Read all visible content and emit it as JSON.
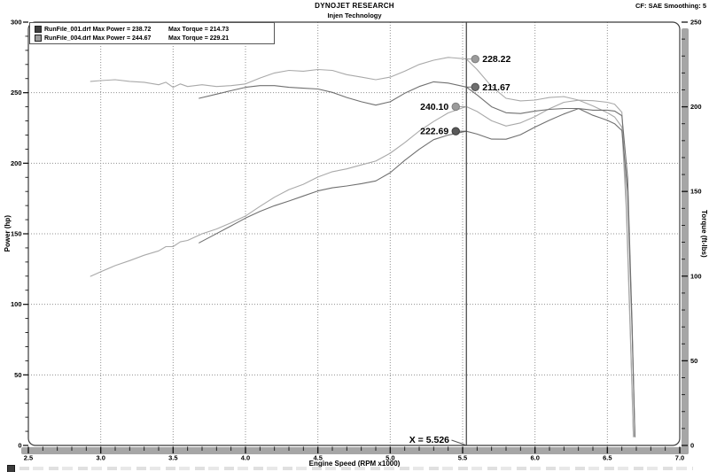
{
  "header": {
    "title": "DYNOJET RESEARCH",
    "subtitle": "Injen Technology",
    "correction": "CF: SAE  Smoothing: 5"
  },
  "legend": {
    "rows": [
      {
        "file": "RunFile_001.drf",
        "max_power": "Max Power = 238.72",
        "max_torque": "Max Torque = 214.73",
        "color": "#3f3f3f"
      },
      {
        "file": "RunFile_004.drf",
        "max_power": "Max Power = 244.67",
        "max_torque": "Max Torque = 229.21",
        "color": "#9b9b9b"
      }
    ]
  },
  "axes": {
    "x": {
      "label": "Engine Speed (RPM x1000)",
      "ticks": [
        2.5,
        3.0,
        3.5,
        4.0,
        4.5,
        5.0,
        5.5,
        6.0,
        6.5,
        7.0
      ],
      "tick_labels": [
        "2.5",
        "3.0",
        "3.5",
        "4.0",
        "4.5",
        "5.0",
        "5.5",
        "6.0",
        "6.5",
        "7.0"
      ],
      "gridlines": [
        3.0,
        3.5,
        4.0,
        4.5,
        5.0,
        5.5,
        6.0,
        6.5
      ],
      "minor_step": 0.1
    },
    "y_left": {
      "label": "Power (hp)",
      "ticks": [
        0,
        50,
        100,
        150,
        200,
        250,
        300
      ],
      "tick_labels": [
        "0",
        "50",
        "100",
        "150",
        "200",
        "250",
        "300"
      ],
      "gridlines": [
        50,
        100,
        150,
        200,
        250
      ],
      "minor_step": 10
    },
    "y_right": {
      "label": "Torque (ft-lbs)",
      "ticks": [
        0,
        50,
        100,
        150,
        200,
        250
      ],
      "tick_labels": [
        "0",
        "50",
        "100",
        "150",
        "200",
        "250"
      ],
      "minor_step": 10
    }
  },
  "cursor": {
    "x_label": "X = 5.526",
    "x_value": 5.526
  },
  "markers": [
    {
      "label": "228.22",
      "value": 228.22,
      "axis": "torque",
      "run": "RunFile_004.drf",
      "side": "right",
      "color": "#9b9b9b",
      "stroke": "#7e7e7e"
    },
    {
      "label": "211.67",
      "value": 211.67,
      "axis": "torque",
      "run": "RunFile_001.drf",
      "side": "right",
      "color": "#6f6f6f",
      "stroke": "#4d4d4d"
    },
    {
      "label": "240.10",
      "value": 240.1,
      "axis": "power",
      "run": "RunFile_004.drf",
      "side": "left",
      "color": "#9b9b9b",
      "stroke": "#7e7e7e"
    },
    {
      "label": "222.69",
      "value": 222.69,
      "axis": "power",
      "run": "RunFile_001.drf",
      "side": "left",
      "color": "#5a5a5a",
      "stroke": "#3a3a3a"
    }
  ],
  "chart_data": {
    "type": "line",
    "title": "DYNOJET RESEARCH - Injen Technology",
    "xlabel": "Engine Speed (RPM x1000)",
    "ylabel_left": "Power (hp)",
    "ylabel_right": "Torque (ft-lbs)",
    "xlim": [
      2.5,
      7.0
    ],
    "ylim_left": [
      0,
      300
    ],
    "ylim_right": [
      0,
      250
    ],
    "grid": "dotted",
    "legend_position": "top-left",
    "cursor_x": 5.526,
    "cursor_values": [
      {
        "run": "RunFile_001.drf",
        "power": 222.69,
        "torque": 211.67
      },
      {
        "run": "RunFile_004.drf",
        "power": 240.1,
        "torque": 228.22
      }
    ],
    "max_values": [
      {
        "run": "RunFile_001.drf",
        "max_power": 238.72,
        "max_torque": 214.73
      },
      {
        "run": "RunFile_004.drf",
        "max_power": 244.67,
        "max_torque": 229.21
      }
    ],
    "series": [
      {
        "name": "RunFile_004.drf Power",
        "axis": "left",
        "color": "#a9a9a9",
        "x": [
          2.93,
          3.0,
          3.1,
          3.2,
          3.3,
          3.4,
          3.45,
          3.5,
          3.55,
          3.6,
          3.7,
          3.8,
          3.9,
          4.0,
          4.1,
          4.2,
          4.3,
          4.4,
          4.5,
          4.6,
          4.7,
          4.8,
          4.9,
          5.0,
          5.1,
          5.2,
          5.3,
          5.4,
          5.526,
          5.6,
          5.7,
          5.8,
          5.9,
          6.0,
          6.1,
          6.2,
          6.3,
          6.4,
          6.5,
          6.55,
          6.6,
          6.63,
          6.66,
          6.68
        ],
        "y": [
          119.9,
          123.1,
          127.5,
          131.0,
          134.8,
          137.9,
          140.9,
          140.9,
          144.3,
          145.3,
          150.0,
          153.4,
          157.8,
          162.6,
          169.4,
          175.9,
          181.3,
          185.1,
          190.2,
          194.0,
          196.0,
          198.8,
          201.5,
          207.1,
          214.6,
          222.8,
          229.6,
          235.7,
          240.1,
          236.7,
          230.1,
          226.4,
          228.6,
          233.1,
          238.7,
          243.2,
          244.67,
          244.3,
          243.2,
          241.9,
          236.2,
          176.7,
          76.1,
          6.4
        ]
      },
      {
        "name": "RunFile_004.drf Torque",
        "axis": "right",
        "color": "#a9a9a9",
        "x": [
          2.93,
          3.0,
          3.1,
          3.2,
          3.3,
          3.4,
          3.45,
          3.5,
          3.55,
          3.6,
          3.7,
          3.8,
          3.9,
          4.0,
          4.1,
          4.2,
          4.3,
          4.4,
          4.5,
          4.6,
          4.7,
          4.8,
          4.9,
          5.0,
          5.1,
          5.2,
          5.3,
          5.4,
          5.526,
          5.6,
          5.7,
          5.8,
          5.9,
          6.0,
          6.1,
          6.2,
          6.3,
          6.4,
          6.5,
          6.55,
          6.6,
          6.63,
          6.66,
          6.68
        ],
        "y": [
          215,
          215.5,
          216,
          215,
          214.5,
          213,
          214.5,
          211.5,
          213.5,
          212,
          213,
          212,
          212.5,
          213.5,
          217,
          220,
          221.5,
          221,
          222,
          221.5,
          219,
          217.5,
          216,
          217.5,
          221,
          225,
          227.5,
          229.21,
          228.22,
          222,
          212,
          205,
          203.5,
          204,
          205.5,
          206,
          204,
          200.5,
          196.5,
          194,
          188,
          140,
          60,
          5
        ]
      },
      {
        "name": "RunFile_001.drf Power",
        "axis": "left",
        "color": "#707070",
        "x": [
          3.68,
          3.8,
          3.9,
          4.0,
          4.1,
          4.2,
          4.3,
          4.4,
          4.5,
          4.6,
          4.7,
          4.8,
          4.9,
          5.0,
          5.1,
          5.2,
          5.3,
          5.4,
          5.526,
          5.6,
          5.7,
          5.8,
          5.9,
          6.0,
          6.1,
          6.2,
          6.3,
          6.4,
          6.45,
          6.5,
          6.55,
          6.6,
          6.64,
          6.67,
          6.69
        ],
        "y": [
          143.6,
          150.1,
          155.6,
          161.1,
          165.9,
          169.9,
          173.2,
          176.8,
          180.4,
          182.6,
          183.9,
          185.5,
          187.5,
          193.3,
          202.0,
          209.9,
          216.7,
          220.0,
          222.69,
          220.7,
          217.1,
          217.0,
          220.2,
          225.6,
          230.5,
          234.9,
          238.72,
          237.6,
          237.6,
          237.6,
          237.0,
          233.7,
          189.6,
          88.9,
          6.4
        ]
      },
      {
        "name": "RunFile_001.drf Torque",
        "axis": "right",
        "color": "#707070",
        "x": [
          3.68,
          3.8,
          3.9,
          4.0,
          4.1,
          4.2,
          4.3,
          4.4,
          4.5,
          4.6,
          4.7,
          4.8,
          4.9,
          5.0,
          5.1,
          5.2,
          5.3,
          5.4,
          5.526,
          5.6,
          5.7,
          5.8,
          5.9,
          6.0,
          6.1,
          6.2,
          6.3,
          6.4,
          6.45,
          6.5,
          6.55,
          6.6,
          6.64,
          6.67,
          6.69
        ],
        "y": [
          205,
          207.5,
          209.5,
          211.5,
          212.5,
          212.5,
          211.5,
          211,
          210.5,
          208.5,
          205.5,
          203,
          201,
          203,
          208,
          212,
          214.73,
          214,
          211.67,
          207,
          200,
          196.5,
          196,
          197.5,
          198.5,
          199,
          199,
          195,
          193.5,
          192,
          190,
          186,
          150,
          70,
          5
        ]
      }
    ]
  }
}
